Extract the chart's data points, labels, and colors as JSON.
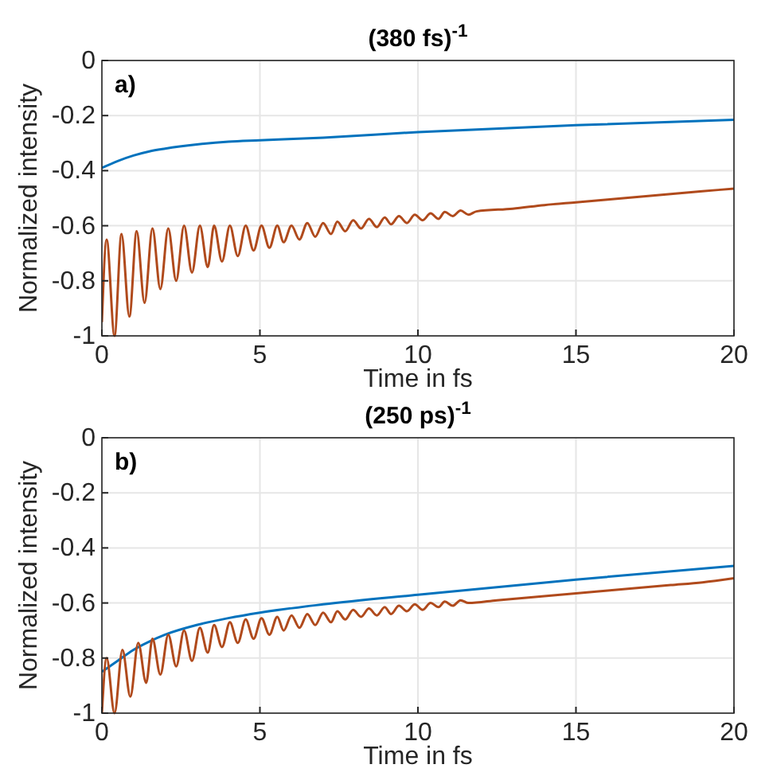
{
  "chart_data": [
    {
      "type": "line",
      "title": "(380 fs)$^{-1}$",
      "xlabel": "Time in fs",
      "ylabel": "Normalized intensity",
      "annotations": [
        "a)"
      ],
      "xlim": [
        0,
        20
      ],
      "xticks": [
        0,
        5,
        10,
        15,
        20
      ],
      "ylim": [
        -1,
        0
      ],
      "yticks": [
        -1,
        -0.8,
        -0.6,
        -0.4,
        -0.2,
        0
      ],
      "grid": true,
      "marker": "none",
      "line_style": "solid",
      "series": [
        {
          "color": "#0072bd",
          "x": [
            0,
            0.5,
            1,
            1.5,
            2,
            3,
            4,
            5,
            7,
            10,
            15,
            20
          ],
          "values": [
            -0.39,
            -0.365,
            -0.345,
            -0.33,
            -0.32,
            -0.305,
            -0.295,
            -0.29,
            -0.28,
            -0.26,
            -0.235,
            -0.215
          ]
        },
        {
          "color": "#b04a1c",
          "x": [
            0,
            0.15,
            0.4,
            0.62,
            0.87,
            1.1,
            1.35,
            1.6,
            1.85,
            2.1,
            2.35,
            2.6,
            2.85,
            3.1,
            3.35,
            3.55,
            3.8,
            4.05,
            4.3,
            4.55,
            4.8,
            5.05,
            5.3,
            5.55,
            5.75,
            6,
            6.25,
            6.5,
            6.75,
            7,
            7.25,
            7.45,
            7.7,
            7.95,
            8.2,
            8.45,
            8.7,
            8.95,
            9.15,
            9.4,
            9.65,
            9.9,
            10.15,
            10.4,
            10.65,
            10.85,
            11.1,
            11.35,
            11.6,
            11.85,
            13,
            14,
            15,
            16,
            17,
            18,
            19,
            20
          ],
          "values": [
            -0.95,
            -0.65,
            -1,
            -0.63,
            -0.93,
            -0.62,
            -0.88,
            -0.61,
            -0.83,
            -0.61,
            -0.8,
            -0.6,
            -0.77,
            -0.6,
            -0.75,
            -0.6,
            -0.73,
            -0.6,
            -0.71,
            -0.6,
            -0.69,
            -0.6,
            -0.68,
            -0.6,
            -0.66,
            -0.6,
            -0.65,
            -0.59,
            -0.64,
            -0.59,
            -0.63,
            -0.585,
            -0.62,
            -0.58,
            -0.61,
            -0.575,
            -0.605,
            -0.57,
            -0.595,
            -0.565,
            -0.59,
            -0.56,
            -0.58,
            -0.555,
            -0.575,
            -0.55,
            -0.565,
            -0.545,
            -0.56,
            -0.548,
            -0.538,
            -0.525,
            -0.515,
            -0.505,
            -0.495,
            -0.485,
            -0.475,
            -0.465
          ]
        }
      ]
    },
    {
      "type": "line",
      "title": "(250 ps)$^{-1}$",
      "xlabel": "Time in fs",
      "ylabel": "Normalized intensity",
      "annotations": [
        "b)"
      ],
      "xlim": [
        0,
        20
      ],
      "xticks": [
        0,
        5,
        10,
        15,
        20
      ],
      "ylim": [
        -1,
        0
      ],
      "yticks": [
        -1,
        -0.8,
        -0.6,
        -0.4,
        -0.2,
        0
      ],
      "grid": true,
      "marker": "none",
      "line_style": "solid",
      "series": [
        {
          "color": "#0072bd",
          "x": [
            0,
            0.5,
            1,
            1.5,
            2,
            3,
            4,
            5,
            7,
            10,
            15,
            20
          ],
          "values": [
            -0.85,
            -0.81,
            -0.77,
            -0.74,
            -0.715,
            -0.68,
            -0.655,
            -0.635,
            -0.605,
            -0.57,
            -0.515,
            -0.465
          ]
        },
        {
          "color": "#b04a1c",
          "x": [
            0,
            0.15,
            0.4,
            0.65,
            0.9,
            1.15,
            1.4,
            1.6,
            1.85,
            2.1,
            2.35,
            2.6,
            2.85,
            3.1,
            3.35,
            3.55,
            3.8,
            4.05,
            4.3,
            4.55,
            4.8,
            5.05,
            5.3,
            5.55,
            5.75,
            6,
            6.25,
            6.5,
            6.75,
            7,
            7.25,
            7.45,
            7.7,
            7.95,
            8.2,
            8.45,
            8.7,
            8.95,
            9.15,
            9.4,
            9.65,
            9.9,
            10.15,
            10.4,
            10.65,
            10.85,
            11.1,
            11.35,
            11.6,
            12.5,
            14,
            15,
            16,
            17,
            18,
            19,
            20
          ],
          "values": [
            -1,
            -0.8,
            -1,
            -0.77,
            -0.94,
            -0.745,
            -0.89,
            -0.73,
            -0.86,
            -0.715,
            -0.83,
            -0.7,
            -0.81,
            -0.69,
            -0.78,
            -0.68,
            -0.76,
            -0.67,
            -0.745,
            -0.66,
            -0.73,
            -0.655,
            -0.715,
            -0.65,
            -0.7,
            -0.645,
            -0.69,
            -0.64,
            -0.68,
            -0.635,
            -0.67,
            -0.63,
            -0.66,
            -0.625,
            -0.65,
            -0.62,
            -0.645,
            -0.615,
            -0.64,
            -0.61,
            -0.63,
            -0.605,
            -0.625,
            -0.6,
            -0.615,
            -0.595,
            -0.61,
            -0.59,
            -0.6,
            -0.59,
            -0.575,
            -0.565,
            -0.555,
            -0.545,
            -0.535,
            -0.525,
            -0.51
          ]
        }
      ]
    }
  ]
}
